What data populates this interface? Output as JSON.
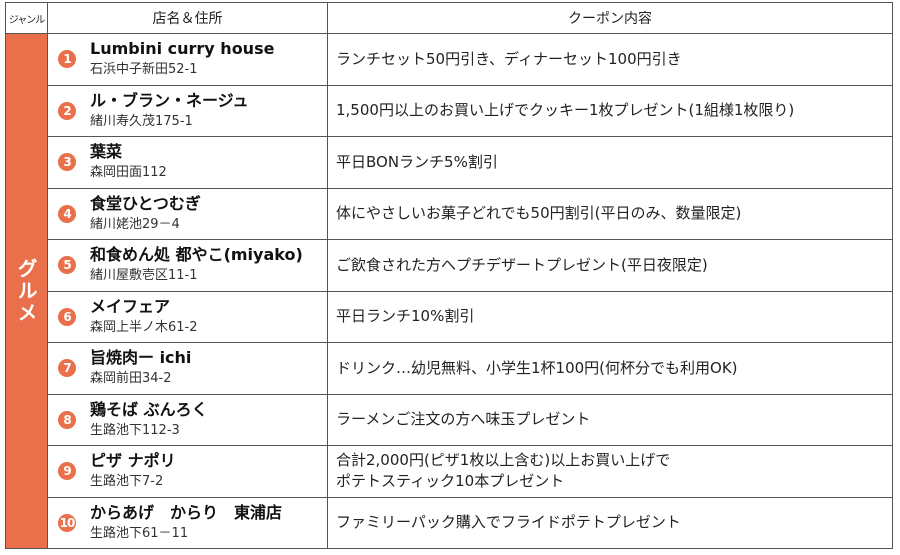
{
  "header": {
    "genre": "ジャンル",
    "shop": "店名＆住所",
    "coupon": "クーポン内容"
  },
  "genre": "グルメ",
  "accent_color": "#e9704a",
  "rows": [
    {
      "num": "1",
      "name": "Lumbini curry house",
      "addr": "石浜中子新田52-1",
      "coupon": "ランチセット50円引き、ディナーセット100円引き"
    },
    {
      "num": "2",
      "name": "ル・ブラン・ネージュ",
      "addr": "緒川寿久茂175-1",
      "coupon": "1,500円以上のお買い上げでクッキー1枚プレゼント(1組様1枚限り)"
    },
    {
      "num": "3",
      "name": "葉菜",
      "addr": "森岡田面112",
      "coupon": "平日BONランチ5%割引"
    },
    {
      "num": "4",
      "name": "食堂ひとつむぎ",
      "addr": "緒川姥池29－4",
      "coupon": "体にやさしいお菓子どれでも50円割引(平日のみ、数量限定)"
    },
    {
      "num": "5",
      "name": "和食めん処 都やこ(miyako)",
      "addr": "緒川屋敷壱区11-1",
      "coupon": "ご飲食された方へプチデザートプレゼント(平日夜限定)"
    },
    {
      "num": "6",
      "name": "メイフェア",
      "addr": "森岡上半ノ木61-2",
      "coupon": "平日ランチ10%割引"
    },
    {
      "num": "7",
      "name": "旨焼肉ー ichi",
      "addr": "森岡前田34-2",
      "coupon": "ドリンク…幼児無料、小学生1杯100円(何杯分でも利用OK)"
    },
    {
      "num": "8",
      "name": "鶏そば ぶんろく",
      "addr": "生路池下112-3",
      "coupon": "ラーメンご注文の方へ味玉プレゼント"
    },
    {
      "num": "9",
      "name": "ピザ ナポリ",
      "addr": "生路池下7-2",
      "coupon": "合計2,000円(ピザ1枚以上含む)以上お買い上げで\nポテトスティック10本プレゼント"
    },
    {
      "num": "10",
      "name": "からあげ　からり　東浦店",
      "addr": "生路池下61－11",
      "coupon": "ファミリーパック購入でフライドポテトプレゼント"
    }
  ]
}
